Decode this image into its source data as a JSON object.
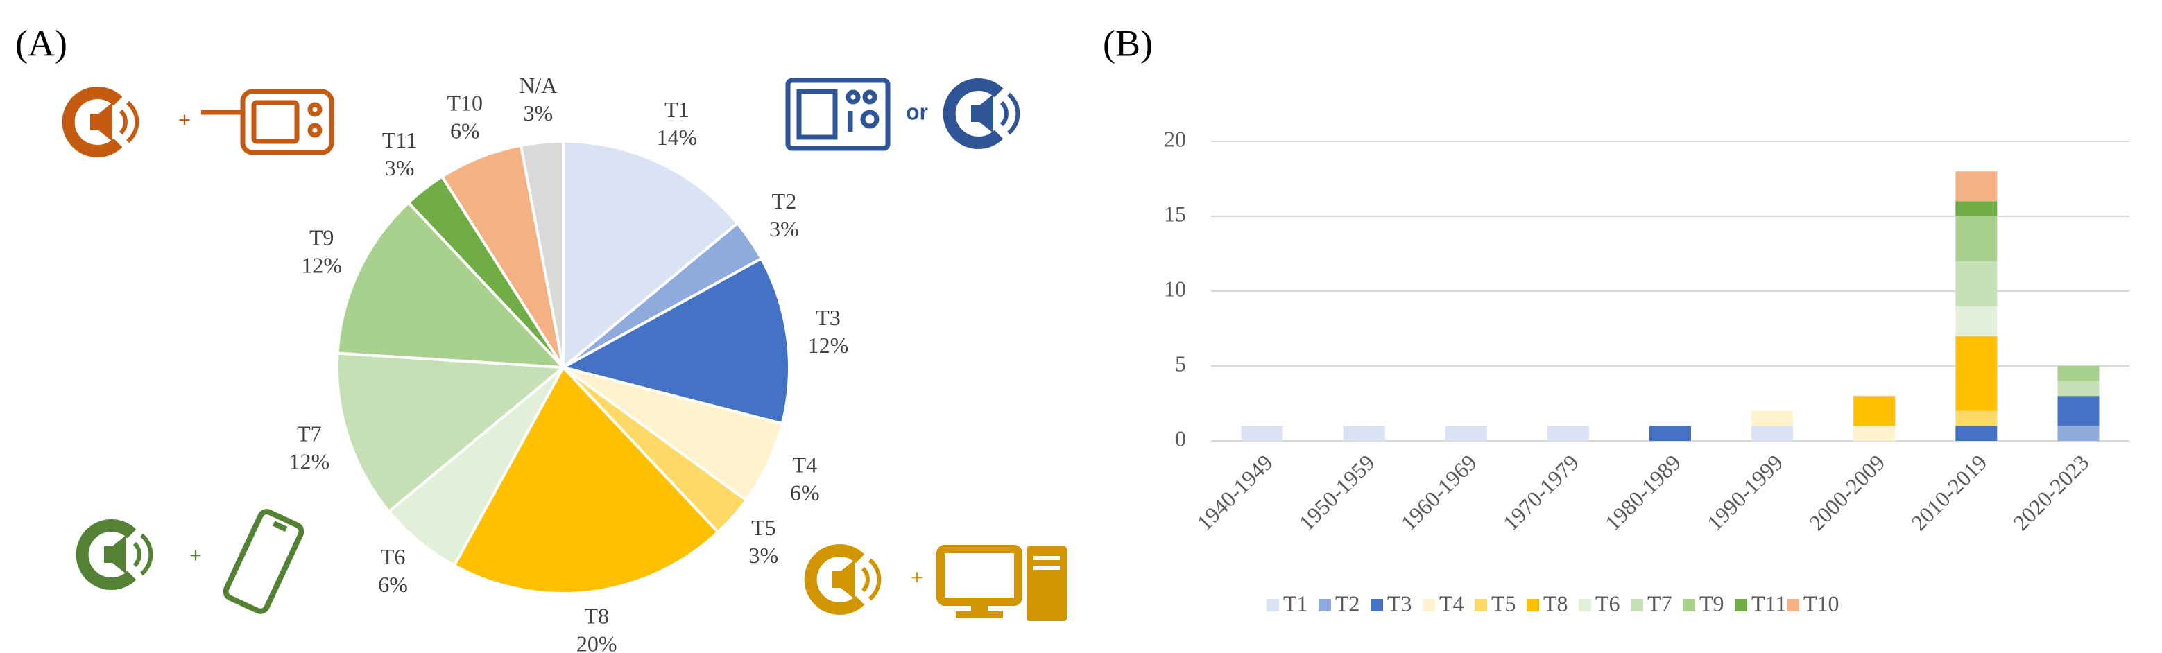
{
  "chart_data": [
    {
      "type": "pie",
      "panel_label": "(A)",
      "categories": [
        "T1",
        "T2",
        "T3",
        "T4",
        "T5",
        "T8",
        "T6",
        "T7",
        "T9",
        "T11",
        "T10",
        "N/A"
      ],
      "values": [
        14,
        3,
        12,
        6,
        3,
        20,
        6,
        12,
        12,
        3,
        6,
        3
      ],
      "value_labels": [
        "14%",
        "3%",
        "12%",
        "6%",
        "3%",
        "20%",
        "6%",
        "12%",
        "12%",
        "3%",
        "6%",
        "3%"
      ],
      "colors": [
        "#dae3f3",
        "#8faadc",
        "#4472c4",
        "#fff2cc",
        "#ffd966",
        "#ffc000",
        "#e2f0d9",
        "#c5e0b4",
        "#a9d18e",
        "#70ad47",
        "#f4b183",
        "#d9d9d9"
      ],
      "annotations": [
        "+",
        "or",
        "+",
        "+"
      ]
    },
    {
      "type": "stacked_bar",
      "panel_label": "(B)",
      "categories": [
        "1940-1949",
        "1950-1959",
        "1960-1969",
        "1970-1979",
        "1980-1989",
        "1990-1999",
        "2000-2009",
        "2010-2019",
        "2020-2023"
      ],
      "series": [
        {
          "name": "T1",
          "color": "#dae3f3",
          "values": [
            1,
            1,
            1,
            1,
            0,
            1,
            0,
            0,
            0
          ]
        },
        {
          "name": "T2",
          "color": "#8faadc",
          "values": [
            0,
            0,
            0,
            0,
            0,
            0,
            0,
            0,
            1
          ]
        },
        {
          "name": "T3",
          "color": "#4472c4",
          "values": [
            0,
            0,
            0,
            0,
            1,
            0,
            0,
            1,
            2
          ]
        },
        {
          "name": "T4",
          "color": "#fff2cc",
          "values": [
            0,
            0,
            0,
            0,
            0,
            1,
            1,
            0,
            0
          ]
        },
        {
          "name": "T5",
          "color": "#ffd966",
          "values": [
            0,
            0,
            0,
            0,
            0,
            0,
            0,
            1,
            0
          ]
        },
        {
          "name": "T8",
          "color": "#ffc000",
          "values": [
            0,
            0,
            0,
            0,
            0,
            0,
            2,
            5,
            0
          ]
        },
        {
          "name": "T6",
          "color": "#e2f0d9",
          "values": [
            0,
            0,
            0,
            0,
            0,
            0,
            0,
            2,
            0
          ]
        },
        {
          "name": "T7",
          "color": "#c5e0b4",
          "values": [
            0,
            0,
            0,
            0,
            0,
            0,
            0,
            3,
            1
          ]
        },
        {
          "name": "T9",
          "color": "#a9d18e",
          "values": [
            0,
            0,
            0,
            0,
            0,
            0,
            0,
            3,
            1
          ]
        },
        {
          "name": "T11",
          "color": "#70ad47",
          "values": [
            0,
            0,
            0,
            0,
            0,
            0,
            0,
            1,
            0
          ]
        },
        {
          "name": "T10",
          "color": "#f4b183",
          "values": [
            0,
            0,
            0,
            0,
            0,
            0,
            0,
            2,
            0
          ]
        }
      ],
      "ylim": [
        0,
        20
      ],
      "yticks": [
        0,
        5,
        10,
        15,
        20
      ],
      "grid": true
    }
  ]
}
